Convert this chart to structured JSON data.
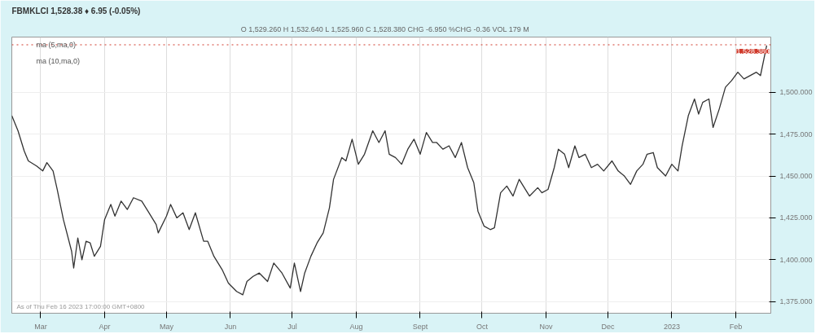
{
  "chart_data": {
    "type": "line",
    "title": "FBMKLCI 1,528.38 ♦ 6.95 (-0.05%)",
    "subtitle": "O 1,529.260  H 1,532.640  L 1,525.960  C 1,528.380  CHG -6.950  %CHG -0.36  VOL 179 M",
    "annotations": [
      "ma (5,ma,0)",
      "ma (10,ma,0)",
      "As of Thu Feb 16 2023 17:00:00 GMT+0800"
    ],
    "xlim": [
      "2022-02-15",
      "2023-02-18"
    ],
    "xticks": [
      {
        "value": "2022-03-01",
        "label": "Mar"
      },
      {
        "value": "2022-04-01",
        "label": "Apr"
      },
      {
        "value": "2022-05-01",
        "label": "May"
      },
      {
        "value": "2022-06-01",
        "label": "Jun"
      },
      {
        "value": "2022-07-01",
        "label": "Jul"
      },
      {
        "value": "2022-08-01",
        "label": "Aug"
      },
      {
        "value": "2022-09-01",
        "label": "Sept"
      },
      {
        "value": "2022-10-01",
        "label": "Oct"
      },
      {
        "value": "2022-11-01",
        "label": "Nov"
      },
      {
        "value": "2022-12-01",
        "label": "Dec"
      },
      {
        "value": "2023-01-01",
        "label": "2023"
      },
      {
        "value": "2023-02-01",
        "label": "Feb"
      }
    ],
    "ylim": [
      1368,
      1533
    ],
    "yticks": [
      {
        "value": 1375,
        "label": "1,375.000"
      },
      {
        "value": 1400,
        "label": "1,400.000"
      },
      {
        "value": 1425,
        "label": "1,425.000"
      },
      {
        "value": 1450,
        "label": "1,450.000"
      },
      {
        "value": 1475,
        "label": "1,475.000"
      },
      {
        "value": 1500,
        "label": "1,500.000"
      }
    ],
    "grid": true,
    "marker": "none",
    "line_style": "solid",
    "ref_lines": [
      {
        "axis": "y",
        "value": 1528.38,
        "label": "1,528.380",
        "color": "#d03a2b",
        "line_style": "dotted"
      }
    ],
    "x": [
      "2022-02-15",
      "2022-02-18",
      "2022-02-21",
      "2022-02-23",
      "2022-02-27",
      "2022-03-02",
      "2022-03-04",
      "2022-03-07",
      "2022-03-09",
      "2022-03-12",
      "2022-03-16",
      "2022-03-17",
      "2022-03-19",
      "2022-03-21",
      "2022-03-23",
      "2022-03-25",
      "2022-03-27",
      "2022-03-30",
      "2022-04-01",
      "2022-04-04",
      "2022-04-06",
      "2022-04-09",
      "2022-04-12",
      "2022-04-15",
      "2022-04-19",
      "2022-04-22",
      "2022-04-26",
      "2022-04-27",
      "2022-05-01",
      "2022-05-03",
      "2022-05-06",
      "2022-05-09",
      "2022-05-12",
      "2022-05-15",
      "2022-05-19",
      "2022-05-21",
      "2022-05-24",
      "2022-05-28",
      "2022-05-31",
      "2022-06-04",
      "2022-06-07",
      "2022-06-09",
      "2022-06-12",
      "2022-06-15",
      "2022-06-19",
      "2022-06-22",
      "2022-06-26",
      "2022-06-30",
      "2022-07-02",
      "2022-07-05",
      "2022-07-07",
      "2022-07-10",
      "2022-07-13",
      "2022-07-16",
      "2022-07-19",
      "2022-07-21",
      "2022-07-25",
      "2022-07-27",
      "2022-07-30",
      "2022-08-02",
      "2022-08-05",
      "2022-08-09",
      "2022-08-12",
      "2022-08-15",
      "2022-08-17",
      "2022-08-20",
      "2022-08-23",
      "2022-08-26",
      "2022-08-29",
      "2022-09-01",
      "2022-09-04",
      "2022-09-07",
      "2022-09-09",
      "2022-09-12",
      "2022-09-15",
      "2022-09-18",
      "2022-09-21",
      "2022-09-24",
      "2022-09-27",
      "2022-09-29",
      "2022-10-02",
      "2022-10-05",
      "2022-10-07",
      "2022-10-10",
      "2022-10-13",
      "2022-10-16",
      "2022-10-19",
      "2022-10-21",
      "2022-10-24",
      "2022-10-28",
      "2022-10-30",
      "2022-11-02",
      "2022-11-05",
      "2022-11-07",
      "2022-11-10",
      "2022-11-12",
      "2022-11-15",
      "2022-11-17",
      "2022-11-20",
      "2022-11-23",
      "2022-11-26",
      "2022-11-29",
      "2022-12-03",
      "2022-12-06",
      "2022-12-09",
      "2022-12-12",
      "2022-12-15",
      "2022-12-18",
      "2022-12-20",
      "2022-12-23",
      "2022-12-25",
      "2022-12-29",
      "2023-01-01",
      "2023-01-04",
      "2023-01-06",
      "2023-01-09",
      "2023-01-12",
      "2023-01-14",
      "2023-01-16",
      "2023-01-19",
      "2023-01-21",
      "2023-01-24",
      "2023-01-27",
      "2023-01-30",
      "2023-02-02",
      "2023-02-05",
      "2023-02-11",
      "2023-02-13",
      "2023-02-16"
    ],
    "series": [
      {
        "color": "#333333",
        "values": [
          1486,
          1477,
          1465,
          1459,
          1456,
          1453,
          1458,
          1453,
          1442,
          1424,
          1405,
          1395,
          1413,
          1400,
          1411,
          1410,
          1402,
          1408,
          1424,
          1433,
          1426,
          1435,
          1430,
          1437,
          1435,
          1429,
          1421,
          1416,
          1426,
          1433,
          1425,
          1428,
          1418,
          1428,
          1411,
          1411,
          1402,
          1394,
          1386,
          1381,
          1379,
          1387,
          1390,
          1392,
          1387,
          1398,
          1392,
          1383,
          1398,
          1381,
          1392,
          1402,
          1410,
          1416,
          1431,
          1448,
          1461,
          1459,
          1472,
          1457,
          1463,
          1477,
          1470,
          1477,
          1463,
          1461,
          1457,
          1466,
          1472,
          1463,
          1476,
          1470,
          1470,
          1466,
          1468,
          1461,
          1470,
          1455,
          1446,
          1429,
          1420,
          1418,
          1419,
          1440,
          1444,
          1438,
          1448,
          1444,
          1438,
          1443,
          1440,
          1442,
          1455,
          1466,
          1463,
          1455,
          1468,
          1461,
          1463,
          1455,
          1457,
          1453,
          1459,
          1453,
          1450,
          1445,
          1453,
          1457,
          1463,
          1464,
          1455,
          1450,
          1457,
          1453,
          1468,
          1486,
          1496,
          1487,
          1494,
          1496,
          1479,
          1490,
          1503,
          1507,
          1512,
          1508,
          1512,
          1510,
          1528
        ]
      }
    ]
  }
}
